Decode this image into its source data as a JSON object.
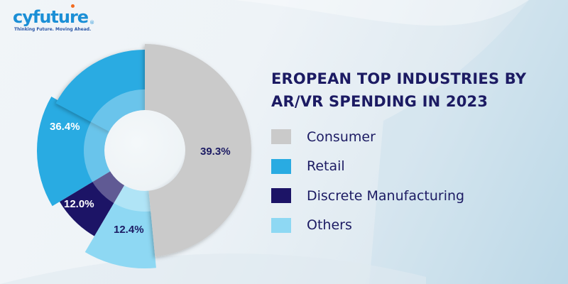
{
  "logo": {
    "name": "cyfuture",
    "tagline": "Thinking Future. Moving Ahead.",
    "registered_mark": "®"
  },
  "colors": {
    "title": "#1c1b63",
    "consumer": "#cacaca",
    "retail": "#29abe2",
    "discrete_manufacturing": "#1c1466",
    "others": "#8ed8f3"
  },
  "chart_data": {
    "type": "pie",
    "variant": "donut",
    "title": "EROPEAN TOP INDUSTRIES BY AR/VR SPENDING IN 2023",
    "title_lines": [
      "EROPEAN TOP INDUSTRIES BY",
      "AR/VR SPENDING IN 2023"
    ],
    "unit": "%",
    "legend_position": "right",
    "slices": [
      {
        "name": "Consumer",
        "value": 39.3,
        "label": "39.3%",
        "color": "#cacaca",
        "label_color": "#1c1b63"
      },
      {
        "name": "Others",
        "value": 12.4,
        "label": "12.4%",
        "color": "#8ed8f3",
        "label_color": "#1c1b63"
      },
      {
        "name": "Discrete Manufacturing",
        "value": 12.0,
        "label": "12.0%",
        "color": "#1c1466",
        "label_color": "#ffffff"
      },
      {
        "name": "Retail",
        "value": 36.4,
        "label": "36.4%",
        "color": "#29abe2",
        "label_color": "#ffffff"
      }
    ],
    "legend": [
      {
        "name": "Consumer",
        "color": "#cacaca"
      },
      {
        "name": "Retail",
        "color": "#29abe2"
      },
      {
        "name": "Discrete Manufacturing",
        "color": "#1c1466"
      },
      {
        "name": "Others",
        "color": "#8ed8f3"
      }
    ]
  }
}
